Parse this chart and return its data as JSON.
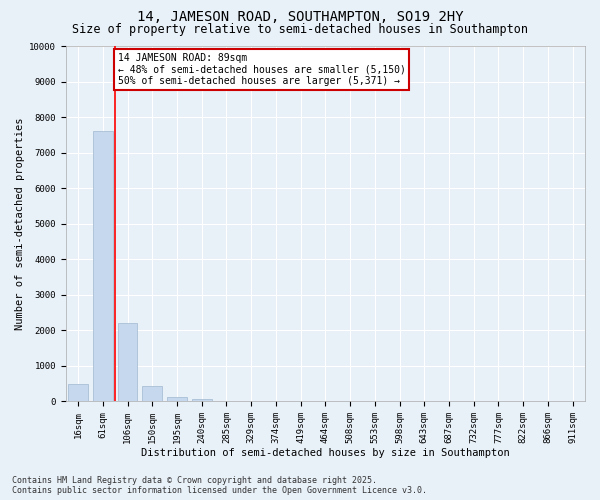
{
  "title": "14, JAMESON ROAD, SOUTHAMPTON, SO19 2HY",
  "subtitle": "Size of property relative to semi-detached houses in Southampton",
  "xlabel": "Distribution of semi-detached houses by size in Southampton",
  "ylabel": "Number of semi-detached properties",
  "categories": [
    "16sqm",
    "61sqm",
    "106sqm",
    "150sqm",
    "195sqm",
    "240sqm",
    "285sqm",
    "329sqm",
    "374sqm",
    "419sqm",
    "464sqm",
    "508sqm",
    "553sqm",
    "598sqm",
    "643sqm",
    "687sqm",
    "732sqm",
    "777sqm",
    "822sqm",
    "866sqm",
    "911sqm"
  ],
  "values": [
    500,
    7600,
    2200,
    420,
    130,
    80,
    0,
    0,
    0,
    0,
    0,
    0,
    0,
    0,
    0,
    0,
    0,
    0,
    0,
    0,
    0
  ],
  "bar_color": "#c5d8ed",
  "bar_edge_color": "#a0b8d0",
  "red_line_x": 1.5,
  "annotation_text": "14 JAMESON ROAD: 89sqm\n← 48% of semi-detached houses are smaller (5,150)\n50% of semi-detached houses are larger (5,371) →",
  "annotation_box_color": "#ffffff",
  "annotation_box_edge_color": "#cc0000",
  "ylim": [
    0,
    10000
  ],
  "yticks": [
    0,
    1000,
    2000,
    3000,
    4000,
    5000,
    6000,
    7000,
    8000,
    9000,
    10000
  ],
  "background_color": "#e8f0f8",
  "plot_bg_color": "#e8f0f8",
  "grid_color": "#ffffff",
  "footer_line1": "Contains HM Land Registry data © Crown copyright and database right 2025.",
  "footer_line2": "Contains public sector information licensed under the Open Government Licence v3.0.",
  "title_fontsize": 10,
  "subtitle_fontsize": 8.5,
  "axis_label_fontsize": 7.5,
  "tick_fontsize": 6.5,
  "annotation_fontsize": 7,
  "footer_fontsize": 6
}
